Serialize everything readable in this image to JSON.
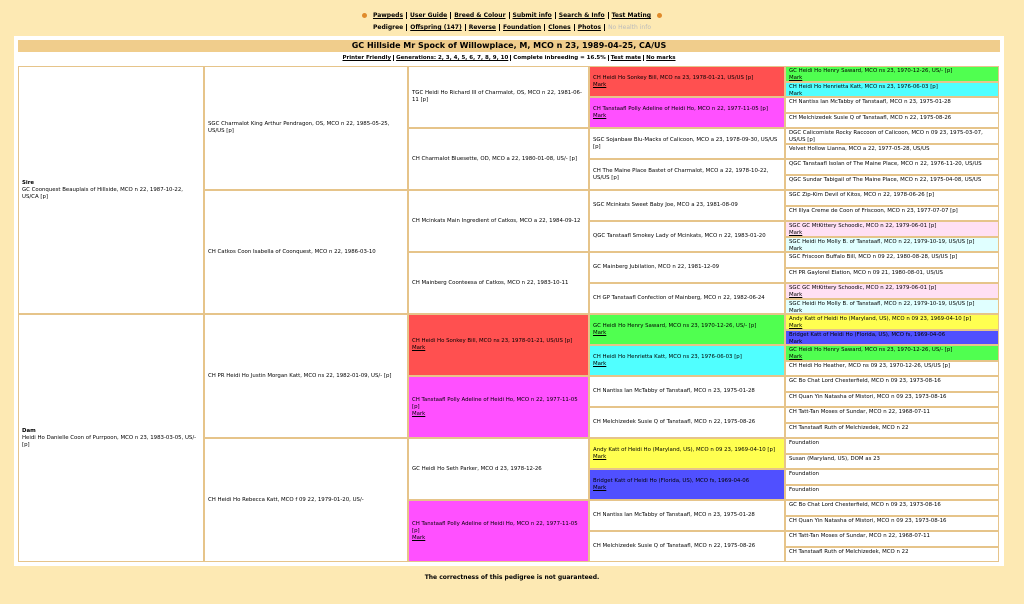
{
  "nav": {
    "primary": [
      "Pawpeds",
      "User Guide",
      "Breed & Colour",
      "Submit info",
      "Search & Info",
      "Test Mating"
    ],
    "secondary": [
      {
        "text": "Pedigree",
        "link": false
      },
      {
        "text": "Offspring (147)",
        "link": true
      },
      {
        "text": "Reverse",
        "link": true
      },
      {
        "text": "Foundation",
        "link": true
      },
      {
        "text": "Clones",
        "link": true
      },
      {
        "text": "Photos",
        "link": true
      },
      {
        "text": "No Health info",
        "link": false,
        "muted": true
      }
    ]
  },
  "header": {
    "title": "GC Hillside Mr Spock of Willowplace, M, MCO n 23, 1989-04-25, CA/US",
    "options": [
      "Printer Friendly",
      "Generations: 2, 3, 4, 5, 6, 7, 8, 9, 10",
      "Complete inbreeding = 16.5%",
      "Test mate",
      "No marks"
    ]
  },
  "pedigree": {
    "generations": [
      [
        {
          "label": "Sire",
          "text": "GC Coonquest Beauplais of Hillside, MCO n 22, 1987-10-22, US/CA [p]"
        },
        {
          "label": "Dam",
          "text": "Heidi Ho Danielle Coon of Purrpoon, MCO n 23, 1983-03-05, US/- [p]"
        }
      ],
      [
        {
          "text": "SGC Charmalot King Arthur Pendragon, OS, MCO n 22, 1985-05-25, US/US [p]"
        },
        {
          "text": "CH Catkos Coon Isabella of Coonquest, MCO n 22, 1986-03-10"
        },
        {
          "text": "CH PR Heidi Ho Justin Morgan Katt, MCO ns 22, 1982-01-09, US/- [p]"
        },
        {
          "text": "CH Heidi Ho Rebecca Katt, MCO f 09 22, 1979-01-20, US/-"
        }
      ],
      [
        {
          "text": "TGC Heidi Ho Richard III of Charmalot, OS, MCO n 22, 1981-06-11 [p]"
        },
        {
          "text": "CH Charmalot Bluesette, OD, MCO a 22, 1980-01-08, US/- [p]"
        },
        {
          "text": "CH Mcinkats Main Ingredient of Catkos, MCO a 22, 1984-09-12"
        },
        {
          "text": "CH Mainberg Coonteesa of Catkos, MCO n 22, 1983-10-11"
        },
        {
          "text": "CH Heidi Ho Sonkey Bill, MCO ns 23, 1978-01-21, US/US [p]",
          "mark": "Mark",
          "color": "#ff5050"
        },
        {
          "text": "CH Tanstaafl Polly Adeline of Heidi Ho, MCO n 22, 1977-11-05 [p]",
          "mark": "Mark",
          "color": "#ff50ff"
        },
        {
          "text": "GC Heidi Ho Seth Parker, MCO d 23, 1978-12-26"
        },
        {
          "text": "CH Tanstaafl Polly Adeline of Heidi Ho, MCO n 22, 1977-11-05 [p]",
          "mark": "Mark",
          "color": "#ff50ff"
        }
      ],
      [
        {
          "text": "CH Heidi Ho Sonkey Bill, MCO ns 23, 1978-01-21, US/US [p]",
          "mark": "Mark",
          "color": "#ff5050"
        },
        {
          "text": "CH Tanstaafl Polly Adeline of Heidi Ho, MCO n 22, 1977-11-05 [p]",
          "mark": "Mark",
          "color": "#ff50ff"
        },
        {
          "text": "SGC Sojanbaw Blu-Macks of Calicoon, MCO a 23, 1978-09-30, US/US [p]"
        },
        {
          "text": "CH The Maine Place Bastet of Charmalot, MCO a 22, 1978-10-22, US/US [p]"
        },
        {
          "text": "SGC Mcinkats Sweet Baby Joe, MCO a 23, 1981-08-09"
        },
        {
          "text": "QGC Tanstaafl Smokey Lady of Mcinkats, MCO n 22, 1983-01-20"
        },
        {
          "text": "GC Mainberg Jubilation, MCO n 22, 1981-12-09"
        },
        {
          "text": "CH GP Tanstaafl Confection of Mainberg, MCO n 22, 1982-06-24"
        },
        {
          "text": "GC Heidi Ho Henry Saward, MCO ns 23, 1970-12-26, US/- [p]",
          "mark": "Mark",
          "color": "#50ff50"
        },
        {
          "text": "CH Heidi Ho Henrietta Katt, MCO ns 23, 1976-06-03 [p]",
          "mark": "Mark",
          "color": "#50ffff"
        },
        {
          "text": "CH Nantiss Ian McTabby of Tanstaafl, MCO n 23, 1975-01-28"
        },
        {
          "text": "CH Melchizedek Susie Q of Tanstaafl, MCO n 22, 1975-08-26"
        },
        {
          "text": "Andy Katt of Heidi Ho (Maryland, US), MCO n 09 23, 1969-04-10 [p]",
          "mark": "Mark",
          "color": "#ffff50"
        },
        {
          "text": "Bridget Katt of Heidi Ho (Florida, US), MCO fs, 1969-04-06",
          "mark": "Mark",
          "color": "#5050ff"
        },
        {
          "text": "CH Nantiss Ian McTabby of Tanstaafl, MCO n 23, 1975-01-28"
        },
        {
          "text": "CH Melchizedek Susie Q of Tanstaafl, MCO n 22, 1975-08-26"
        }
      ],
      [
        {
          "text": "GC Heidi Ho Henry Saward, MCO ns 23, 1970-12-26, US/- [p]",
          "mark": "Mark",
          "color": "#50ff50"
        },
        {
          "text": "CH Heidi Ho Henrietta Katt, MCO ns 23, 1976-06-03 [p]",
          "mark": "Mark",
          "color": "#50ffff"
        },
        {
          "text": "CH Nantiss Ian McTabby of Tanstaafl, MCO n 23, 1975-01-28"
        },
        {
          "text": "CH Melchizedek Susie Q of Tanstaafl, MCO n 22, 1975-08-26"
        },
        {
          "text": "DGC Calicomiste Rocky Raccoon of Calicoon, MCO n 09 23, 1975-03-07, US/US [p]"
        },
        {
          "text": "Velvet Hollow Lianna, MCO a 22, 1977-05-28, US/US"
        },
        {
          "text": "QGC Tanstaafl Isolan of The Maine Place, MCO n 22, 1976-11-20, US/US"
        },
        {
          "text": "QGC Sundar Tabigail of The Maine Place, MCO n 22, 1975-04-08, US/US"
        },
        {
          "text": "SGC Zip-Kim Devil of Kitos, MCO n 22, 1978-06-26 [p]"
        },
        {
          "text": "CH Illya Creme de Coon of Friscoon, MCO n 23, 1977-07-07 [p]"
        },
        {
          "text": "SGC GC MtKittery Schoodic, MCO n 22, 1979-06-01 [p]",
          "mark": "Mark",
          "color": "#ffe0f4"
        },
        {
          "text": "SGC Heidi Ho Molly B. of Tanstaafl, MCO n 22, 1979-10-19, US/US [p]",
          "mark": "Mark",
          "color": "#e0ffff"
        },
        {
          "text": "SGC Friscoon Buffalo Bill, MCO n 09 22, 1980-08-28, US/US [p]"
        },
        {
          "text": "CH PR Gaylorel Elation, MCO n 09 21, 1980-08-01, US/US"
        },
        {
          "text": "SGC GC MtKittery Schoodic, MCO n 22, 1979-06-01 [p]",
          "mark": "Mark",
          "color": "#ffe0f4"
        },
        {
          "text": "SGC Heidi Ho Molly B. of Tanstaafl, MCO n 22, 1979-10-19, US/US [p]",
          "mark": "Mark",
          "color": "#e0ffff"
        },
        {
          "text": "Andy Katt of Heidi Ho (Maryland, US), MCO n 09 23, 1969-04-10 [p]",
          "mark": "Mark",
          "color": "#ffff50"
        },
        {
          "text": "Bridget Katt of Heidi Ho (Florida, US), MCO fs, 1969-04-06",
          "mark": "Mark",
          "color": "#5050ff"
        },
        {
          "text": "GC Heidi Ho Henry Saward, MCO ns 23, 1970-12-26, US/- [p]",
          "mark": "Mark",
          "color": "#50ff50"
        },
        {
          "text": "CH Heidi Ho Heather, MCO ns 09 23, 1970-12-26, US/US [p]"
        },
        {
          "text": "GC Bo Chat Lord Chesterfield, MCO n 09 23, 1973-08-16"
        },
        {
          "text": "CH Quan Yin Natasha of Mistori, MCO n 09 23, 1973-08-16"
        },
        {
          "text": "CH Tatt-Tan Moses of Sundar, MCO n 22, 1968-07-11"
        },
        {
          "text": "CH Tanstaafl Ruth of Melchizedek, MCO n 22"
        },
        {
          "text": "Foundation"
        },
        {
          "text": "Susan (Maryland, US), DOM as 23"
        },
        {
          "text": "Foundation"
        },
        {
          "text": "Foundation"
        },
        {
          "text": "GC Bo Chat Lord Chesterfield, MCO n 09 23, 1973-08-16"
        },
        {
          "text": "CH Quan Yin Natasha of Mistori, MCO n 09 23, 1973-08-16"
        },
        {
          "text": "CH Tatt-Tan Moses of Sundar, MCO n 22, 1968-07-11"
        },
        {
          "text": "CH Tanstaafl Ruth of Melchizedek, MCO n 22"
        }
      ]
    ]
  },
  "footer": {
    "note": "The correctness of this pedigree is not guaranteed."
  }
}
